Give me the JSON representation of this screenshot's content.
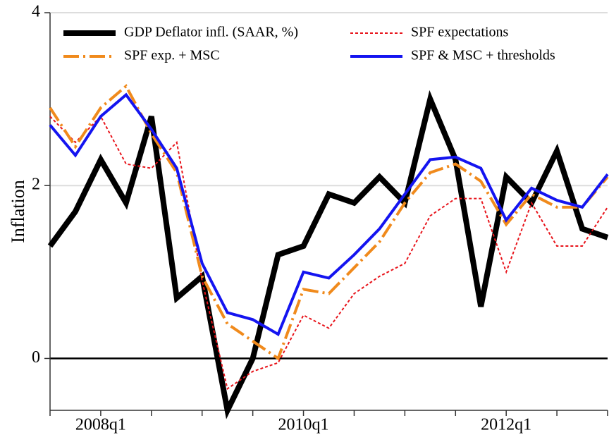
{
  "chart_data": {
    "type": "line",
    "y_label": "Inflation",
    "categories": [
      null,
      null,
      "2008q1",
      null,
      null,
      null,
      null,
      null,
      null,
      null,
      "2010q1",
      null,
      null,
      null,
      null,
      null,
      null,
      null,
      "2012q1",
      null,
      null,
      null,
      null
    ],
    "ylim": [
      -0.6,
      4
    ],
    "yticks": [
      0,
      2,
      4
    ],
    "grid": true,
    "series": [
      {
        "name": "GDP Deflator infl. (SAAR, %)",
        "color": "#000000",
        "linestyle": "solid",
        "linewidth": 8,
        "values": [
          1.3,
          1.7,
          2.3,
          1.8,
          2.8,
          0.7,
          0.95,
          -0.6,
          0.0,
          1.2,
          1.3,
          1.9,
          1.8,
          2.1,
          1.8,
          3.0,
          2.3,
          0.6,
          2.1,
          1.8,
          2.4,
          1.5,
          1.4
        ]
      },
      {
        "name": "SPF expectations",
        "color": "#e8141b",
        "linestyle": "dotted",
        "linewidth": 2,
        "values": [
          2.8,
          2.5,
          2.8,
          2.25,
          2.2,
          2.5,
          0.9,
          -0.35,
          -0.15,
          -0.05,
          0.5,
          0.35,
          0.75,
          0.95,
          1.1,
          1.65,
          1.85,
          1.85,
          1.0,
          1.8,
          1.3,
          1.3,
          1.75
        ]
      },
      {
        "name": "SPF exp. + MSC",
        "color": "#f08a1c",
        "linestyle": "dashdot",
        "linewidth": 4,
        "values": [
          2.9,
          2.45,
          2.9,
          3.15,
          2.6,
          2.15,
          0.95,
          0.4,
          0.2,
          0.0,
          0.8,
          0.75,
          1.05,
          1.35,
          1.8,
          2.15,
          2.25,
          2.05,
          1.55,
          1.9,
          1.75,
          1.75,
          2.1
        ]
      },
      {
        "name": "SPF & MSC + thresholds",
        "color": "#1414f0",
        "linestyle": "solid",
        "linewidth": 4,
        "values": [
          2.7,
          2.35,
          2.8,
          3.05,
          2.65,
          2.2,
          1.1,
          0.53,
          0.45,
          0.28,
          1.0,
          0.93,
          1.2,
          1.5,
          1.9,
          2.3,
          2.33,
          2.2,
          1.6,
          1.97,
          1.83,
          1.75,
          2.13
        ]
      }
    ]
  }
}
